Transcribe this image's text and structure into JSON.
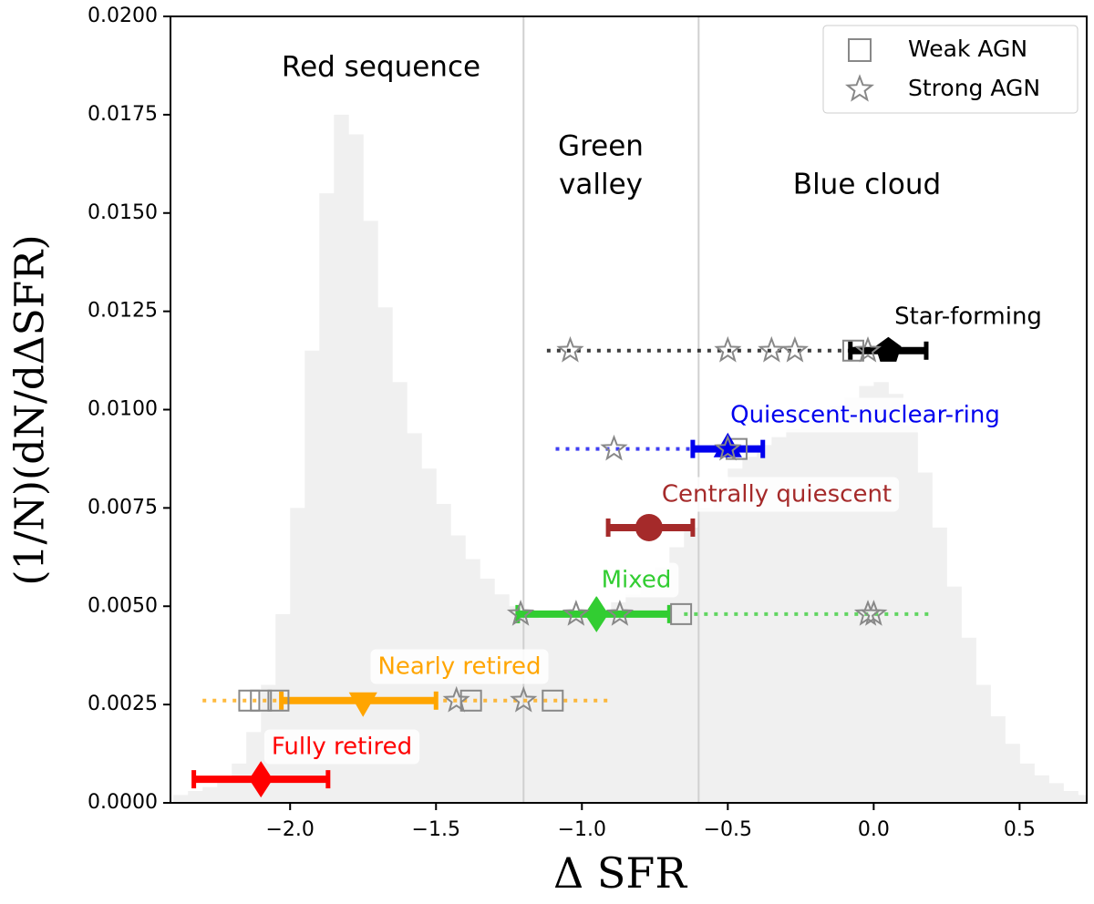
{
  "chart_data": {
    "type": "histogram",
    "xlabel": "Δ SFR",
    "ylabel": "(1/N)(dN/dΔSFR)",
    "xlim": [
      -2.41,
      0.73
    ],
    "ylim": [
      0,
      0.02
    ],
    "xticks": [
      {
        "value": -2.0,
        "label": "−2.0"
      },
      {
        "value": -1.5,
        "label": "−1.5"
      },
      {
        "value": -1.0,
        "label": "−1.0"
      },
      {
        "value": -0.5,
        "label": "−0.5"
      },
      {
        "value": 0,
        "label": "0.0"
      },
      0.5
    ],
    "yticks": [
      {
        "value": 0,
        "label": "0.0000"
      },
      {
        "value": 0.0025,
        "label": "0.0025"
      },
      {
        "value": 0.005,
        "label": "0.0050"
      },
      {
        "value": 0.0075,
        "label": "0.0075"
      },
      {
        "value": 0.01,
        "label": "0.0100"
      },
      {
        "value": 0.0125,
        "label": "0.0125"
      },
      {
        "value": 0.015,
        "label": "0.0150"
      },
      {
        "value": 0.0175,
        "label": "0.0175"
      },
      {
        "value": 0.02,
        "label": "0.0200"
      }
    ],
    "histogram": {
      "color": "#f0f0f0",
      "bins": [
        -2.4,
        -2.35,
        -2.3,
        -2.25,
        -2.2,
        -2.15,
        -2.1,
        -2.05,
        -2.0,
        -1.95,
        -1.9,
        -1.85,
        -1.8,
        -1.75,
        -1.7,
        -1.65,
        -1.6,
        -1.55,
        -1.5,
        -1.45,
        -1.4,
        -1.35,
        -1.3,
        -1.25,
        -1.2,
        -1.15,
        -1.1,
        -1.05,
        -1.0,
        -0.95,
        -0.9,
        -0.85,
        -0.8,
        -0.75,
        -0.7,
        -0.65,
        -0.6,
        -0.55,
        -0.5,
        -0.45,
        -0.4,
        -0.35,
        -0.3,
        -0.25,
        -0.2,
        -0.15,
        -0.1,
        -0.05,
        0.0,
        0.05,
        0.1,
        0.15,
        0.2,
        0.25,
        0.3,
        0.35,
        0.4,
        0.45,
        0.5,
        0.55,
        0.6,
        0.65,
        0.7,
        0.75
      ],
      "counts": [
        0.0002,
        0.0003,
        0.0004,
        0.0006,
        0.001,
        0.0018,
        0.003,
        0.0048,
        0.0075,
        0.0115,
        0.0155,
        0.0175,
        0.017,
        0.0148,
        0.0126,
        0.0107,
        0.0094,
        0.0085,
        0.0076,
        0.0068,
        0.0062,
        0.0057,
        0.0053,
        0.005,
        0.0048,
        0.0047,
        0.0047,
        0.0047,
        0.0048,
        0.0049,
        0.0051,
        0.0053,
        0.0056,
        0.006,
        0.0065,
        0.007,
        0.0075,
        0.008,
        0.0085,
        0.0088,
        0.0091,
        0.0093,
        0.0095,
        0.0097,
        0.0099,
        0.0101,
        0.0103,
        0.0106,
        0.0107,
        0.0104,
        0.0096,
        0.0084,
        0.007,
        0.0055,
        0.0042,
        0.003,
        0.0022,
        0.0015,
        0.001,
        0.0007,
        0.0005,
        0.0003,
        0.0002
      ]
    },
    "dividers": [
      -1.2,
      -0.6
    ],
    "regions": [
      "Red sequence",
      "Green",
      "valley",
      "Blue cloud"
    ],
    "legend": {
      "location": "upper right",
      "items": [
        "Weak AGN",
        "Strong AGN"
      ],
      "color": "#888888"
    },
    "series": [
      {
        "name": "Star-forming",
        "color": "#000000",
        "marker": "pentagon",
        "y": 0.0115,
        "x": 0.05,
        "xmin": -0.08,
        "xmax": 0.18,
        "dotted": [
          -1.12,
          0.0
        ],
        "weak_agn": [
          -0.07
        ],
        "strong_agn": [
          -1.04,
          -0.5,
          -0.35,
          -0.27,
          -0.02
        ]
      },
      {
        "name": "Quiescent-nuclear-ring",
        "color": "#0000ee",
        "marker": "triangle-up",
        "y": 0.009,
        "x": -0.5,
        "xmin": -0.62,
        "xmax": -0.38,
        "dotted": [
          -1.09,
          -0.62
        ],
        "weak_agn": [
          -0.47
        ],
        "strong_agn": [
          -0.89,
          -0.5
        ]
      },
      {
        "name": "Centrally quiescent",
        "color": "#a52a2a",
        "marker": "circle",
        "y": 0.007,
        "x": -0.77,
        "xmin": -0.91,
        "xmax": -0.62,
        "dotted": null,
        "weak_agn": [],
        "strong_agn": []
      },
      {
        "name": "Mixed",
        "color": "#32cd32",
        "marker": "diamond",
        "y": 0.0048,
        "x": -0.95,
        "xmin": -1.22,
        "xmax": -0.7,
        "dotted": [
          -0.65,
          0.2
        ],
        "weak_agn": [
          -0.66
        ],
        "strong_agn": [
          -1.21,
          -1.02,
          -0.87,
          -0.02,
          0.0
        ]
      },
      {
        "name": "Nearly retired",
        "color": "#ffa500",
        "marker": "triangle-down",
        "y": 0.0026,
        "x": -1.75,
        "xmin": -2.03,
        "xmax": -1.5,
        "dotted": [
          -2.3,
          -0.9
        ],
        "weak_agn": [
          -2.14,
          -2.1,
          -2.04,
          -1.38,
          -1.1
        ],
        "strong_agn": [
          -1.43,
          -1.2
        ]
      },
      {
        "name": "Fully retired",
        "color": "#ff0000",
        "marker": "diamond",
        "y": 0.0006,
        "x": -2.1,
        "xmin": -2.33,
        "xmax": -1.87,
        "dotted": null,
        "weak_agn": [],
        "strong_agn": []
      }
    ]
  }
}
